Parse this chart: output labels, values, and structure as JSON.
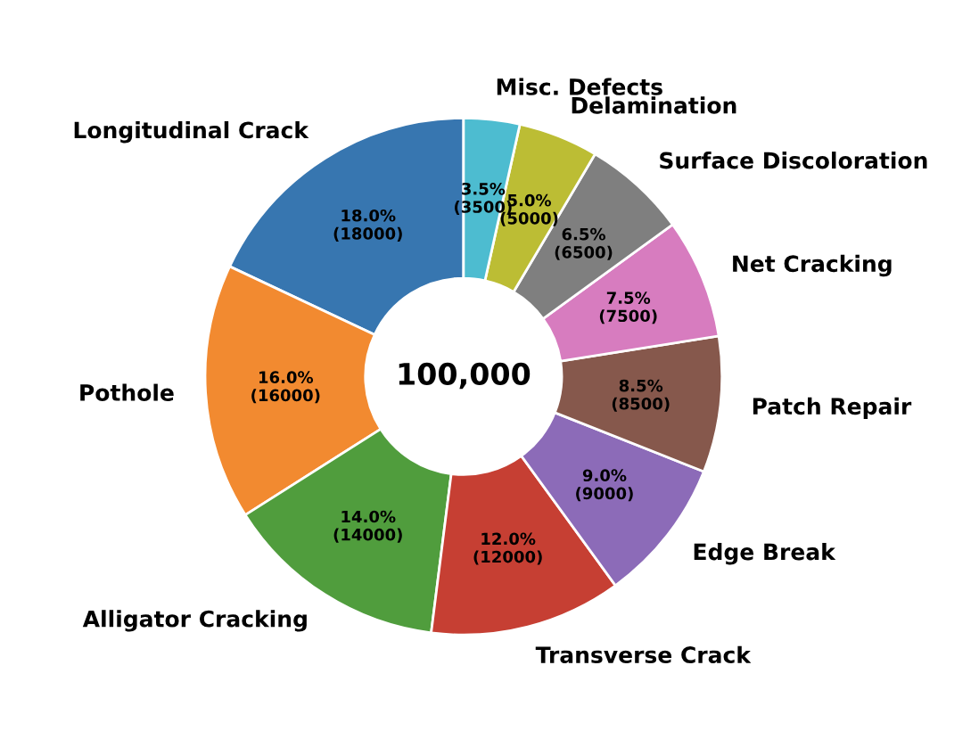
{
  "chart_data": {
    "type": "donut",
    "categories": [
      "Longitudinal Crack",
      "Pothole",
      "Alligator Cracking",
      "Transverse Crack",
      "Edge Break",
      "Patch Repair",
      "Net Cracking",
      "Surface Discoloration",
      "Delamination",
      "Misc. Defects"
    ],
    "values": [
      18000,
      16000,
      14000,
      12000,
      9000,
      8500,
      7500,
      6500,
      5000,
      3500
    ],
    "colors": [
      "#3776b0",
      "#f28a30",
      "#509d3d",
      "#c63f33",
      "#8c6bb8",
      "#86584c",
      "#d77cbf",
      "#7f7f7f",
      "#bcbd34",
      "#4dbcd0"
    ],
    "value_labels": [
      "18.0%\n(18000)",
      "16.0%\n(16000)",
      "14.0%\n(14000)",
      "12.0%\n(12000)",
      "9.0%\n(9000)",
      "8.5%\n(8500)",
      "7.5%\n(7500)",
      "6.5%\n(6500)",
      "5.0%\n(5000)",
      "3.5%\n(3500)"
    ],
    "annotations": [
      "100,000"
    ],
    "legend": false
  }
}
